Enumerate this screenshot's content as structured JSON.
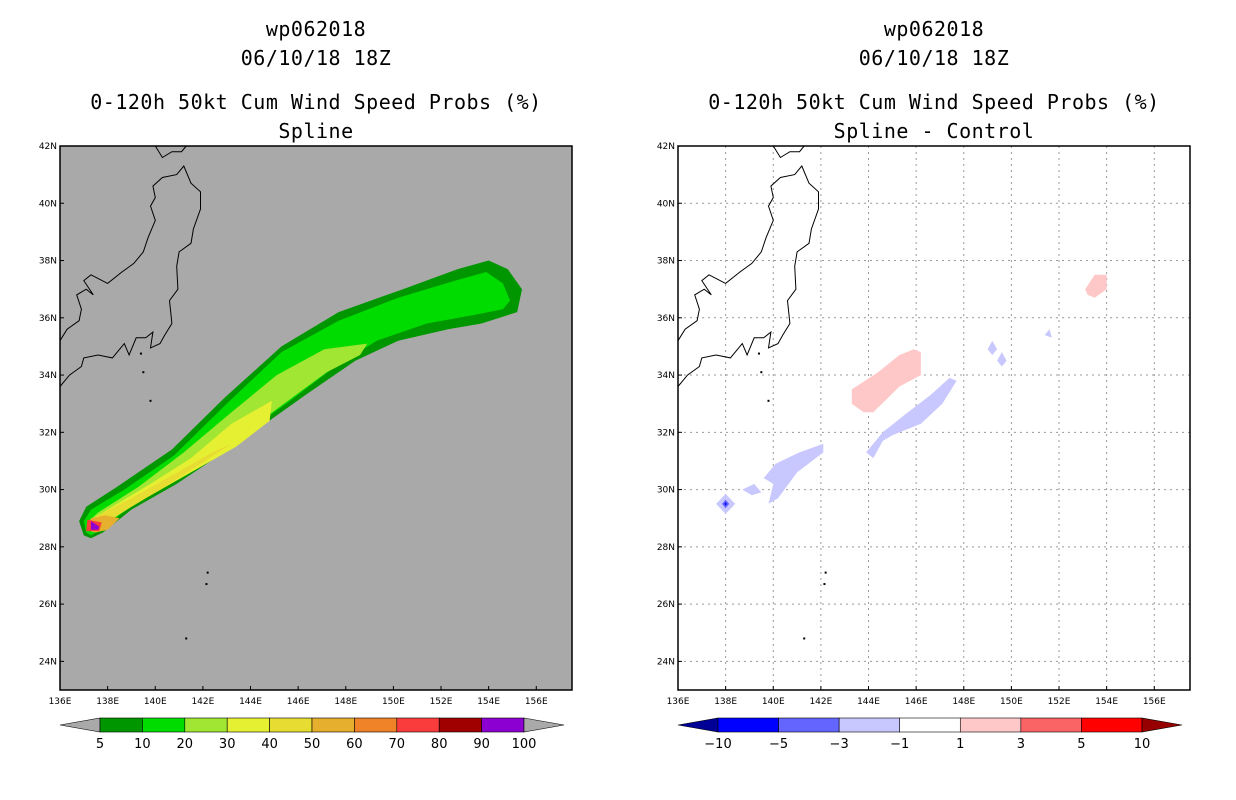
{
  "chart_data": [
    {
      "type": "contour-map",
      "storm_id": "wp062018",
      "datetime": "06/10/18 18Z",
      "title": "0-120h 50kt Cum Wind Speed Probs (%)",
      "subtitle": "Spline",
      "xlim": [
        136,
        157.5
      ],
      "ylim": [
        23,
        42
      ],
      "x_ticks": [
        "136E",
        "138E",
        "140E",
        "142E",
        "144E",
        "146E",
        "148E",
        "150E",
        "152E",
        "154E",
        "156E"
      ],
      "y_ticks": [
        "24N",
        "26N",
        "28N",
        "30N",
        "32N",
        "34N",
        "36N",
        "38N",
        "40N",
        "42N"
      ],
      "background_color": "#a9a9a9",
      "grid": false,
      "colorbar": {
        "levels": [
          "5",
          "10",
          "20",
          "30",
          "40",
          "50",
          "60",
          "70",
          "80",
          "90",
          "100"
        ],
        "colors": [
          "#009600",
          "#00dc00",
          "#a0e632",
          "#e6f032",
          "#e6dc32",
          "#e6af2d",
          "#f08228",
          "#fa3c3c",
          "#a00000",
          "#8c00d2"
        ],
        "under_color": "#a9a9a9",
        "over_color": "#a9a9a9"
      },
      "swath": [
        {
          "level": "5",
          "color": "#009600",
          "polygon": [
            [
              137.0,
              28.4
            ],
            [
              136.8,
              28.9
            ],
            [
              137.1,
              29.4
            ],
            [
              138.4,
              30.1
            ],
            [
              140.7,
              31.4
            ],
            [
              142.9,
              33.2
            ],
            [
              145.3,
              35.0
            ],
            [
              147.7,
              36.2
            ],
            [
              150.4,
              37.0
            ],
            [
              152.7,
              37.7
            ],
            [
              154.0,
              38.0
            ],
            [
              154.8,
              37.7
            ],
            [
              155.4,
              37.0
            ],
            [
              155.2,
              36.2
            ],
            [
              153.7,
              35.8
            ],
            [
              152.3,
              35.6
            ],
            [
              150.2,
              35.2
            ],
            [
              148.4,
              34.5
            ],
            [
              146.3,
              33.3
            ],
            [
              143.6,
              31.7
            ],
            [
              140.9,
              30.2
            ],
            [
              139.0,
              29.3
            ],
            [
              137.8,
              28.5
            ],
            [
              137.3,
              28.3
            ]
          ]
        },
        {
          "level": "10",
          "color": "#00dc00",
          "polygon": [
            [
              137.1,
              28.5
            ],
            [
              137.0,
              28.9
            ],
            [
              137.3,
              29.3
            ],
            [
              138.7,
              30.0
            ],
            [
              140.8,
              31.2
            ],
            [
              143.0,
              33.0
            ],
            [
              145.3,
              34.8
            ],
            [
              147.7,
              35.9
            ],
            [
              150.2,
              36.7
            ],
            [
              152.6,
              37.3
            ],
            [
              153.9,
              37.6
            ],
            [
              154.6,
              37.2
            ],
            [
              154.9,
              36.6
            ],
            [
              154.6,
              36.3
            ],
            [
              153.4,
              36.1
            ],
            [
              151.4,
              35.8
            ],
            [
              149.3,
              35.2
            ],
            [
              147.4,
              34.2
            ],
            [
              145.5,
              33.0
            ],
            [
              143.3,
              31.7
            ],
            [
              140.6,
              30.3
            ],
            [
              138.8,
              29.3
            ],
            [
              137.7,
              28.6
            ],
            [
              137.3,
              28.4
            ]
          ]
        },
        {
          "level": "20",
          "color": "#a0e632",
          "polygon": [
            [
              137.2,
              28.6
            ],
            [
              137.2,
              28.9
            ],
            [
              137.6,
              29.2
            ],
            [
              139.3,
              30.1
            ],
            [
              141.2,
              31.3
            ],
            [
              143.2,
              32.7
            ],
            [
              145.1,
              34.0
            ],
            [
              147.1,
              34.9
            ],
            [
              148.9,
              35.1
            ],
            [
              148.6,
              34.7
            ],
            [
              147.2,
              34.1
            ],
            [
              145.4,
              33.0
            ],
            [
              143.3,
              31.7
            ],
            [
              140.8,
              30.4
            ],
            [
              139.0,
              29.4
            ],
            [
              137.7,
              28.7
            ],
            [
              137.4,
              28.5
            ]
          ]
        },
        {
          "level": "30",
          "color": "#e6f032",
          "polygon": [
            [
              137.3,
              28.7
            ],
            [
              137.4,
              29.0
            ],
            [
              138.2,
              29.4
            ],
            [
              139.8,
              30.2
            ],
            [
              141.5,
              31.1
            ],
            [
              143.2,
              32.3
            ],
            [
              144.9,
              33.1
            ],
            [
              144.8,
              32.4
            ],
            [
              143.4,
              31.5
            ],
            [
              141.5,
              30.6
            ],
            [
              139.6,
              29.7
            ],
            [
              138.2,
              29.0
            ],
            [
              137.6,
              28.7
            ]
          ]
        },
        {
          "level": "40",
          "color": "#e6dc32",
          "polygon": [
            [
              137.4,
              28.8
            ],
            [
              137.6,
              29.1
            ],
            [
              139.0,
              29.7
            ],
            [
              140.5,
              30.4
            ],
            [
              142.4,
              31.3
            ],
            [
              143.2,
              31.6
            ],
            [
              142.1,
              31.0
            ],
            [
              140.4,
              30.1
            ],
            [
              138.8,
              29.3
            ],
            [
              137.8,
              28.8
            ]
          ]
        },
        {
          "level": "50",
          "color": "#e6af2d",
          "polygon": [
            [
              137.1,
              28.6
            ],
            [
              137.3,
              29.0
            ],
            [
              137.9,
              29.1
            ],
            [
              138.5,
              29.0
            ],
            [
              138.0,
              28.6
            ],
            [
              137.5,
              28.5
            ]
          ]
        },
        {
          "level": "70",
          "color": "#fa3c3c",
          "polygon": [
            [
              137.1,
              28.55
            ],
            [
              137.15,
              28.95
            ],
            [
              137.75,
              28.85
            ],
            [
              137.65,
              28.55
            ]
          ]
        },
        {
          "level": "100",
          "color": "#8c00d2",
          "polygon": [
            [
              137.3,
              28.6
            ],
            [
              137.3,
              28.9
            ],
            [
              137.65,
              28.7
            ],
            [
              137.6,
              28.6
            ]
          ]
        }
      ]
    },
    {
      "type": "contour-map",
      "storm_id": "wp062018",
      "datetime": "06/10/18 18Z",
      "title": "0-120h 50kt Cum Wind Speed Probs (%)",
      "subtitle": "Spline - Control",
      "xlim": [
        136,
        157.5
      ],
      "ylim": [
        23,
        42
      ],
      "x_ticks": [
        "136E",
        "138E",
        "140E",
        "142E",
        "144E",
        "146E",
        "148E",
        "150E",
        "152E",
        "154E",
        "156E"
      ],
      "y_ticks": [
        "24N",
        "26N",
        "28N",
        "30N",
        "32N",
        "34N",
        "36N",
        "38N",
        "40N",
        "42N"
      ],
      "background_color": "#ffffff",
      "grid": true,
      "colorbar": {
        "levels": [
          "-10",
          "-5",
          "-3",
          "-1",
          "1",
          "3",
          "5",
          "10"
        ],
        "colors": [
          "#0000ff",
          "#6464ff",
          "#c8c8ff",
          "#ffffff",
          "#ffc8c8",
          "#fa6464",
          "#ff0000"
        ],
        "under_color": "#000096",
        "over_color": "#960000"
      },
      "anomalies": [
        {
          "level": "-1",
          "color": "#c8c8ff",
          "polygon": [
            [
              143.9,
              31.3
            ],
            [
              144.6,
              32.0
            ],
            [
              145.5,
              32.6
            ],
            [
              146.6,
              33.3
            ],
            [
              147.4,
              33.9
            ],
            [
              147.7,
              33.8
            ],
            [
              147.1,
              33.0
            ],
            [
              146.2,
              32.3
            ],
            [
              145.0,
              31.9
            ],
            [
              144.6,
              31.7
            ],
            [
              144.2,
              31.1
            ]
          ]
        },
        {
          "level": "-1",
          "color": "#c8c8ff",
          "polygon": [
            [
              139.6,
              30.4
            ],
            [
              140.1,
              30.9
            ],
            [
              141.1,
              31.3
            ],
            [
              142.1,
              31.6
            ],
            [
              142.1,
              31.3
            ],
            [
              141.0,
              30.6
            ],
            [
              140.2,
              29.7
            ],
            [
              139.8,
              29.5
            ],
            [
              140.0,
              30.2
            ]
          ]
        },
        {
          "level": "-1",
          "color": "#c8c8ff",
          "polygon": [
            [
              138.7,
              30.0
            ],
            [
              139.2,
              30.2
            ],
            [
              139.5,
              29.9
            ],
            [
              139.1,
              29.8
            ]
          ]
        },
        {
          "level": "-1",
          "color": "#c8c8ff",
          "polygon": [
            [
              137.6,
              29.5
            ],
            [
              138.0,
              29.85
            ],
            [
              138.4,
              29.5
            ],
            [
              138.0,
              29.15
            ]
          ]
        },
        {
          "level": "-3",
          "color": "#6464ff",
          "polygon": [
            [
              137.85,
              29.5
            ],
            [
              138.0,
              29.65
            ],
            [
              138.15,
              29.5
            ],
            [
              138.0,
              29.35
            ]
          ]
        },
        {
          "level": "-5",
          "color": "#0000ff",
          "polygon": [
            [
              137.95,
              29.5
            ],
            [
              138.0,
              29.56
            ],
            [
              138.05,
              29.5
            ],
            [
              138.0,
              29.44
            ]
          ]
        },
        {
          "level": "-1",
          "color": "#c8c8ff",
          "polygon": [
            [
              149.0,
              34.9
            ],
            [
              149.2,
              35.2
            ],
            [
              149.4,
              34.9
            ],
            [
              149.2,
              34.7
            ]
          ]
        },
        {
          "level": "-1",
          "color": "#c8c8ff",
          "polygon": [
            [
              149.4,
              34.5
            ],
            [
              149.6,
              34.8
            ],
            [
              149.8,
              34.5
            ],
            [
              149.6,
              34.3
            ]
          ]
        },
        {
          "level": "-1",
          "color": "#c8c8ff",
          "polygon": [
            [
              151.4,
              35.4
            ],
            [
              151.6,
              35.6
            ],
            [
              151.7,
              35.3
            ]
          ]
        },
        {
          "level": "1",
          "color": "#ffc8c8",
          "polygon": [
            [
              143.3,
              33.0
            ],
            [
              143.3,
              33.5
            ],
            [
              144.4,
              34.1
            ],
            [
              145.3,
              34.7
            ],
            [
              145.9,
              34.9
            ],
            [
              146.2,
              34.8
            ],
            [
              146.2,
              34.0
            ],
            [
              145.3,
              33.6
            ],
            [
              144.2,
              32.7
            ],
            [
              143.8,
              32.7
            ]
          ]
        },
        {
          "level": "1",
          "color": "#ffc8c8",
          "polygon": [
            [
              153.1,
              37.0
            ],
            [
              153.5,
              37.5
            ],
            [
              154.0,
              37.5
            ],
            [
              154.0,
              37.0
            ],
            [
              153.5,
              36.7
            ],
            [
              153.2,
              36.8
            ]
          ]
        }
      ]
    }
  ],
  "left_panel": {
    "line1": "wp062018",
    "line2": "06/10/18 18Z",
    "title": "0-120h 50kt Cum Wind Speed Probs (%)",
    "subtitle": "Spline"
  },
  "right_panel": {
    "line1": "wp062018",
    "line2": "06/10/18 18Z",
    "title": "0-120h 50kt Cum Wind Speed Probs (%)",
    "subtitle": "Spline - Control"
  }
}
